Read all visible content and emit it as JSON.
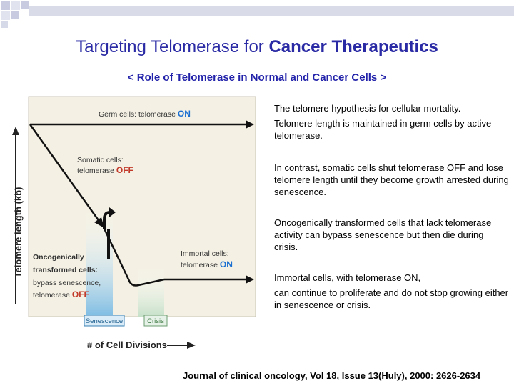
{
  "title": {
    "part1": "Targeting Telomerase for ",
    "part2": "Cancer Therapeutics"
  },
  "subtitle": "< Role of Telomerase in Normal and Cancer Cells >",
  "diagram": {
    "y_axis_label": "Telomere length (kb)",
    "x_axis_label": "# of Cell Divisions",
    "germ": {
      "label": "Germ cells: telomerase ",
      "state": "ON"
    },
    "somatic": {
      "line1": "Somatic cells:",
      "line2": "telomerase ",
      "state": "OFF"
    },
    "onco": {
      "line1": "Oncogenically",
      "line2": "transformed cells:",
      "line3": "bypass senescence,",
      "line4": "telomerase ",
      "state": "OFF"
    },
    "immortal": {
      "line1": "Immortal cells:",
      "line2": "telomerase ",
      "state": "ON"
    },
    "senescence": "Senescence",
    "crisis": "Crisis",
    "colors": {
      "on": "#1b6fd0",
      "off": "#c23a2a",
      "bg": "#f4f1e4",
      "senescence": "#8ec5e6",
      "crisis": "#cde3cf"
    }
  },
  "text": {
    "p1": "The telomere hypothesis for cellular mortality.",
    "p2": "Telomere length is maintained in germ cells by active telomerase.",
    "p3": " In contrast, somatic cells shut telomerase OFF and lose telomere length until they become growth arrested during senescence.",
    "p4": " Oncogenically transformed cells that lack telomerase activity can bypass senescence but then die during crisis.",
    "p5": "Immortal cells, with telomerase ON,",
    "p6": "can continue to proliferate and do not stop growing either in senescence or crisis."
  },
  "footer": "Journal of clinical oncology, Vol 18, Issue 13(Huly), 2000: 2626-2634"
}
